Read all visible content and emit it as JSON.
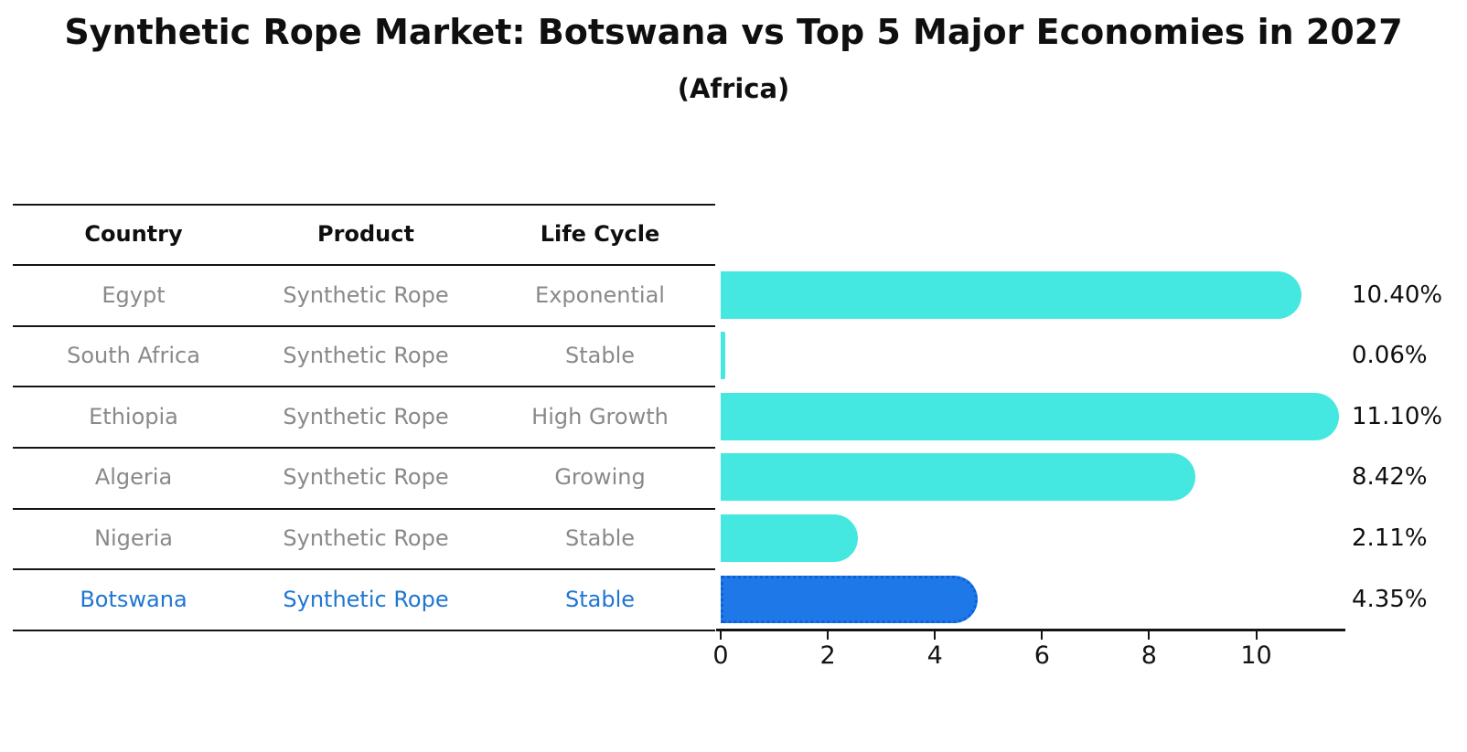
{
  "title": "Synthetic Rope Market: Botswana vs Top 5 Major Economies in 2027",
  "subtitle": "(Africa)",
  "table": {
    "headers": [
      "Country",
      "Product",
      "Life Cycle"
    ],
    "rows": [
      {
        "country": "Egypt",
        "product": "Synthetic Rope",
        "life_cycle": "Exponential",
        "highlighted": false
      },
      {
        "country": "South Africa",
        "product": "Synthetic Rope",
        "life_cycle": "Stable",
        "highlighted": false
      },
      {
        "country": "Ethiopia",
        "product": "Synthetic Rope",
        "life_cycle": "High Growth",
        "highlighted": false
      },
      {
        "country": "Algeria",
        "product": "Synthetic Rope",
        "life_cycle": "Growing",
        "highlighted": false
      },
      {
        "country": "Nigeria",
        "product": "Synthetic Rope",
        "life_cycle": "Stable",
        "highlighted": false
      },
      {
        "country": "Botswana",
        "product": "Synthetic Rope",
        "life_cycle": "Stable",
        "highlighted": true
      }
    ]
  },
  "chart_data": {
    "type": "bar",
    "orientation": "horizontal",
    "title": "Synthetic Rope Market: Botswana vs Top 5 Major Economies in 2027",
    "subtitle": "(Africa)",
    "categories": [
      "Egypt",
      "South Africa",
      "Ethiopia",
      "Algeria",
      "Nigeria",
      "Botswana"
    ],
    "values": [
      10.4,
      0.06,
      11.1,
      8.42,
      2.11,
      4.35
    ],
    "value_labels": [
      "10.40%",
      "0.06%",
      "11.10%",
      "8.42%",
      "2.11%",
      "4.35%"
    ],
    "xticks": [
      "0",
      "2",
      "4",
      "6",
      "8",
      "10"
    ],
    "xlim": [
      0,
      11.7
    ],
    "grid": false,
    "legend": false,
    "highlight_index": 5,
    "bar_color": "#45E8E0",
    "highlight_bar_color": "#1E78E8",
    "highlight_border_color": "#0E5FD8"
  },
  "colors": {
    "text": "#0F0F0F",
    "row_text": "#898989",
    "highlight_text": "#1F76D2",
    "line": "#141414"
  }
}
